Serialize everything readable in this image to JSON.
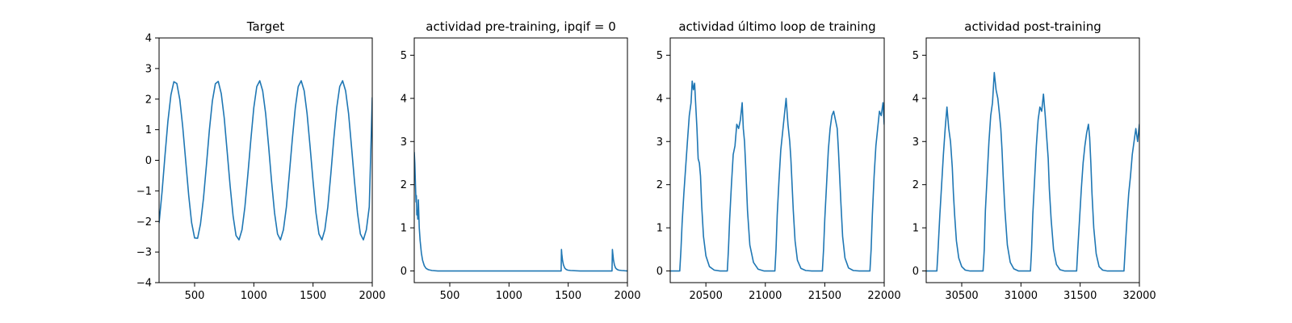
{
  "colors": {
    "series": "#1f77b4",
    "axes": "#000000",
    "background": "#ffffff"
  },
  "chart_data": [
    {
      "type": "line",
      "title": "Target",
      "xlim": [
        200,
        2000
      ],
      "ylim": [
        -4,
        4
      ],
      "xticks": [
        500,
        1000,
        1500,
        2000
      ],
      "yticks": [
        -4,
        -3,
        -2,
        -1,
        0,
        1,
        2,
        3,
        4
      ],
      "grid": false,
      "series": [
        {
          "x": [
            200,
            225,
            250,
            275,
            300,
            325,
            350,
            375,
            400,
            425,
            450,
            475,
            500,
            525,
            550,
            575,
            600,
            625,
            650,
            675,
            700,
            725,
            750,
            775,
            800,
            825,
            850,
            875,
            900,
            925,
            950,
            975,
            1000,
            1025,
            1050,
            1075,
            1100,
            1125,
            1150,
            1175,
            1200,
            1225,
            1250,
            1275,
            1300,
            1325,
            1350,
            1375,
            1400,
            1425,
            1450,
            1475,
            1500,
            1525,
            1550,
            1575,
            1600,
            1625,
            1650,
            1675,
            1700,
            1725,
            1750,
            1775,
            1800,
            1825,
            1850,
            1875,
            1900,
            1925,
            1950,
            1975,
            2000
          ],
          "y": [
            -2.05,
            -1.03,
            0.15,
            1.29,
            2.14,
            2.57,
            2.51,
            1.98,
            1.09,
            -0.03,
            -1.15,
            -2.04,
            -2.54,
            -2.55,
            -2.08,
            -1.24,
            -0.14,
            0.99,
            1.94,
            2.5,
            2.58,
            2.18,
            1.38,
            0.29,
            -0.84,
            -1.83,
            -2.46,
            -2.6,
            -2.27,
            -1.52,
            -0.45,
            0.69,
            1.72,
            2.41,
            2.6,
            2.27,
            1.52,
            0.45,
            -0.69,
            -1.72,
            -2.41,
            -2.6,
            -2.27,
            -1.52,
            -0.45,
            0.69,
            1.72,
            2.41,
            2.6,
            2.27,
            1.52,
            0.45,
            -0.69,
            -1.72,
            -2.41,
            -2.6,
            -2.27,
            -1.52,
            -0.45,
            0.69,
            1.72,
            2.41,
            2.6,
            2.27,
            1.52,
            0.45,
            -0.69,
            -1.72,
            -2.41,
            -2.6,
            -2.27,
            -1.52,
            2.05
          ]
        }
      ]
    },
    {
      "type": "line",
      "title": "actividad pre-training, ipqif = 0",
      "xlim": [
        200,
        2000
      ],
      "ylim": [
        -0.27,
        5.4
      ],
      "xticks": [
        500,
        1000,
        1500,
        2000
      ],
      "yticks": [
        0,
        1,
        2,
        3,
        4,
        5
      ],
      "grid": false,
      "series": [
        {
          "x": [
            200,
            205,
            210,
            215,
            218,
            222,
            226,
            230,
            235,
            242,
            250,
            260,
            270,
            285,
            300,
            320,
            350,
            400,
            500,
            700,
            900,
            1100,
            1300,
            1440,
            1443,
            1446,
            1452,
            1460,
            1470,
            1480,
            1495,
            1520,
            1600,
            1800,
            1870,
            1873,
            1876,
            1882,
            1890,
            1900,
            1910,
            1925,
            1950,
            2000
          ],
          "y": [
            2.75,
            2.5,
            2.0,
            1.6,
            1.75,
            1.3,
            1.4,
            1.2,
            1.65,
            1.0,
            0.7,
            0.42,
            0.25,
            0.12,
            0.06,
            0.03,
            0.01,
            0.0,
            0.0,
            0.0,
            0.0,
            0.0,
            0.0,
            0.0,
            0.5,
            0.4,
            0.25,
            0.14,
            0.07,
            0.04,
            0.02,
            0.01,
            0.0,
            0.0,
            0.0,
            0.5,
            0.42,
            0.26,
            0.14,
            0.07,
            0.04,
            0.02,
            0.01,
            0.0
          ]
        }
      ]
    },
    {
      "type": "line",
      "title": "actividad último loop de training",
      "xlim": [
        20200,
        22000
      ],
      "ylim": [
        -0.27,
        5.4
      ],
      "xticks": [
        20500,
        21000,
        21500,
        22000
      ],
      "yticks": [
        0,
        1,
        2,
        3,
        4,
        5
      ],
      "grid": false,
      "series": [
        {
          "x": [
            20200,
            20280,
            20290,
            20300,
            20315,
            20330,
            20345,
            20360,
            20375,
            20385,
            20395,
            20405,
            20415,
            20425,
            20435,
            20445,
            20455,
            20465,
            20480,
            20500,
            20530,
            20570,
            20620,
            20680,
            20690,
            20700,
            20715,
            20730,
            20745,
            20760,
            20775,
            20790,
            20805,
            20815,
            20825,
            20835,
            20850,
            20870,
            20900,
            20940,
            20990,
            21080,
            21090,
            21100,
            21115,
            21130,
            21145,
            21160,
            21175,
            21190,
            21205,
            21215,
            21225,
            21235,
            21250,
            21270,
            21300,
            21340,
            21390,
            21480,
            21490,
            21500,
            21515,
            21530,
            21545,
            21560,
            21575,
            21590,
            21605,
            21615,
            21625,
            21635,
            21650,
            21670,
            21700,
            21740,
            21790,
            21880,
            21890,
            21900,
            21915,
            21930,
            21945,
            21960,
            21975,
            21990,
            22000
          ],
          "y": [
            0.0,
            0.0,
            0.5,
            1.1,
            1.8,
            2.4,
            3.0,
            3.6,
            3.9,
            4.4,
            4.2,
            4.35,
            3.8,
            3.3,
            2.6,
            2.5,
            2.2,
            1.5,
            0.8,
            0.35,
            0.1,
            0.02,
            0.0,
            0.0,
            0.5,
            1.2,
            2.0,
            2.7,
            2.9,
            3.4,
            3.3,
            3.5,
            3.9,
            3.3,
            3.0,
            2.4,
            1.4,
            0.6,
            0.2,
            0.04,
            0.0,
            0.0,
            0.5,
            1.3,
            2.1,
            2.8,
            3.2,
            3.6,
            4.0,
            3.4,
            3.0,
            2.6,
            2.0,
            1.4,
            0.7,
            0.25,
            0.06,
            0.01,
            0.0,
            0.0,
            0.5,
            1.2,
            2.0,
            2.8,
            3.3,
            3.6,
            3.7,
            3.5,
            3.3,
            2.8,
            2.2,
            1.6,
            0.8,
            0.3,
            0.07,
            0.01,
            0.0,
            0.0,
            0.5,
            1.3,
            2.2,
            2.9,
            3.3,
            3.7,
            3.6,
            3.9,
            3.4
          ]
        }
      ]
    },
    {
      "type": "line",
      "title": "actividad post-training",
      "xlim": [
        30200,
        32000
      ],
      "ylim": [
        -0.27,
        5.4
      ],
      "xticks": [
        30500,
        31000,
        31500,
        32000
      ],
      "yticks": [
        0,
        1,
        2,
        3,
        4,
        5
      ],
      "grid": false,
      "series": [
        {
          "x": [
            30200,
            30290,
            30300,
            30315,
            30330,
            30345,
            30360,
            30375,
            30390,
            30405,
            30420,
            30430,
            30440,
            30455,
            30475,
            30500,
            30530,
            30570,
            30620,
            30680,
            30690,
            30700,
            30715,
            30730,
            30745,
            30760,
            30775,
            30790,
            30805,
            30820,
            30830,
            30840,
            30850,
            30865,
            30885,
            30910,
            30940,
            30980,
            31080,
            31090,
            31100,
            31115,
            31130,
            31145,
            31160,
            31175,
            31190,
            31205,
            31220,
            31230,
            31240,
            31255,
            31275,
            31300,
            31330,
            31370,
            31470,
            31480,
            31495,
            31510,
            31525,
            31540,
            31555,
            31570,
            31580,
            31590,
            31600,
            31615,
            31635,
            31660,
            31690,
            31730,
            31870,
            31880,
            31895,
            31910,
            31925,
            31940,
            31955,
            31970,
            31985,
            32000
          ],
          "y": [
            0.0,
            0.0,
            0.5,
            1.3,
            2.0,
            2.7,
            3.3,
            3.8,
            3.3,
            3.0,
            2.4,
            1.8,
            1.3,
            0.7,
            0.3,
            0.1,
            0.02,
            0.0,
            0.0,
            0.0,
            0.5,
            1.4,
            2.2,
            3.0,
            3.6,
            3.9,
            4.6,
            4.2,
            4.0,
            3.6,
            3.3,
            2.8,
            2.2,
            1.4,
            0.6,
            0.2,
            0.05,
            0.0,
            0.0,
            0.5,
            1.3,
            2.1,
            2.9,
            3.5,
            3.8,
            3.7,
            4.1,
            3.6,
            3.0,
            2.6,
            1.9,
            1.2,
            0.5,
            0.15,
            0.03,
            0.0,
            0.0,
            0.5,
            1.2,
            1.9,
            2.5,
            2.9,
            3.2,
            3.4,
            3.1,
            2.5,
            1.8,
            1.0,
            0.4,
            0.1,
            0.02,
            0.0,
            0.0,
            0.5,
            1.2,
            1.8,
            2.2,
            2.7,
            3.0,
            3.3,
            3.0,
            3.4
          ]
        }
      ]
    }
  ]
}
